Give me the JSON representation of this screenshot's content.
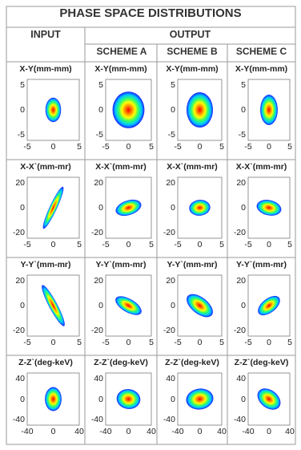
{
  "table": {
    "title": "PHASE SPACE DISTRIBUTIONS",
    "input_header": "INPUT",
    "output_header": "OUTPUT",
    "scheme_headers": [
      "SCHEME A",
      "SCHEME B",
      "SCHEME C"
    ]
  },
  "colormap": [
    "#1a1aff",
    "#00c8ff",
    "#33ff66",
    "#ffff00",
    "#ff8800",
    "#ff0000"
  ],
  "rows": [
    {
      "label": "X-Y(mm-mm)",
      "x_ticks": [
        "-5",
        "0",
        "5"
      ],
      "y_ticks": [
        "5",
        "0",
        "-5"
      ],
      "cells": [
        {
          "column": "INPUT",
          "rx": 0.3,
          "ry": 0.4,
          "tilt": 0
        },
        {
          "column": "SCHEME A",
          "rx": 0.7,
          "ry": 0.6,
          "tilt": 0
        },
        {
          "column": "SCHEME B",
          "rx": 0.6,
          "ry": 0.58,
          "tilt": 0
        },
        {
          "column": "SCHEME C",
          "rx": 0.42,
          "ry": 0.5,
          "tilt": 0
        }
      ]
    },
    {
      "label": "X-X`(mm-mr)",
      "x_ticks": [
        "-5",
        "0",
        "5"
      ],
      "y_ticks": [
        "20",
        "0",
        "-20"
      ],
      "cells": [
        {
          "column": "INPUT",
          "rx": 0.14,
          "ry": 0.76,
          "tilt": 25
        },
        {
          "column": "SCHEME A",
          "rx": 0.58,
          "ry": 0.24,
          "tilt": -18
        },
        {
          "column": "SCHEME B",
          "rx": 0.48,
          "ry": 0.26,
          "tilt": -6
        },
        {
          "column": "SCHEME C",
          "rx": 0.6,
          "ry": 0.25,
          "tilt": 12
        }
      ]
    },
    {
      "label": "Y-Y`(mm-mr)",
      "x_ticks": [
        "-5",
        "0",
        "5"
      ],
      "y_ticks": [
        "20",
        "0",
        "-20"
      ],
      "cells": [
        {
          "column": "INPUT",
          "rx": 0.16,
          "ry": 0.76,
          "tilt": -28
        },
        {
          "column": "SCHEME A",
          "rx": 0.64,
          "ry": 0.22,
          "tilt": 30
        },
        {
          "column": "SCHEME B",
          "rx": 0.7,
          "ry": 0.27,
          "tilt": 38
        },
        {
          "column": "SCHEME C",
          "rx": 0.62,
          "ry": 0.23,
          "tilt": -38
        }
      ]
    },
    {
      "label": "Z-Z`(deg-keV)",
      "x_ticks": [
        "-40",
        "0",
        "40"
      ],
      "y_ticks": [
        "40",
        "0",
        "-40"
      ],
      "cells": [
        {
          "column": "INPUT",
          "rx": 0.32,
          "ry": 0.46,
          "tilt": 0
        },
        {
          "column": "SCHEME A",
          "rx": 0.52,
          "ry": 0.38,
          "tilt": 8
        },
        {
          "column": "SCHEME B",
          "rx": 0.62,
          "ry": 0.4,
          "tilt": -8
        },
        {
          "column": "SCHEME C",
          "rx": 0.62,
          "ry": 0.34,
          "tilt": 38
        }
      ]
    }
  ]
}
